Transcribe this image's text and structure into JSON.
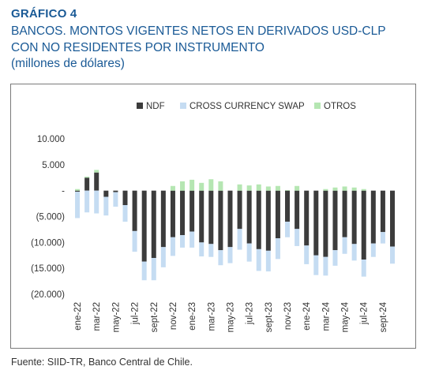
{
  "header": {
    "kicker": "GRÁFICO 4",
    "title_line1": "BANCOS. MONTOS VIGENTES NETOS EN DERIVADOS USD-CLP",
    "title_line2": "CON NO RESIDENTES POR INSTRUMENTO",
    "units": "(millones de dólares)"
  },
  "footer": {
    "source": "Fuente: SIID-TR, Banco Central de Chile."
  },
  "colors": {
    "ndf": "#3c3c3c",
    "ccs": "#c5dcf2",
    "otros": "#b5e6b2",
    "title": "#1a5a96"
  },
  "chart_data": {
    "type": "bar",
    "stacked": true,
    "legend_position": "top",
    "grid": false,
    "ylim": [
      -20000,
      10000
    ],
    "y_ticks": [
      10000,
      5000,
      0,
      -5000,
      -10000,
      -15000,
      -20000
    ],
    "y_tick_labels": [
      "10.000",
      "5.000",
      "-",
      "(5.000)",
      "(10.000)",
      "(15.000)",
      "(20.000)"
    ],
    "categories": [
      "ene-22",
      "feb-22",
      "mar-22",
      "abr-22",
      "may-22",
      "jun-22",
      "jul-22",
      "ago-22",
      "sept-22",
      "oct-22",
      "nov-22",
      "dic-22",
      "ene-23",
      "feb-23",
      "mar-23",
      "abr-23",
      "may-23",
      "jun-23",
      "jul-23",
      "ago-23",
      "sept-23",
      "oct-23",
      "nov-23",
      "dic-23",
      "ene-24",
      "feb-24",
      "mar-24",
      "abr-24",
      "may-24",
      "jun-24",
      "jul-24",
      "ago-24",
      "sept-24",
      "oct-24"
    ],
    "x_tick_labels": [
      "ene-22",
      "mar-22",
      "may-22",
      "jul-22",
      "sept-22",
      "nov-22",
      "ene-23",
      "mar-23",
      "may-23",
      "jul-23",
      "sept-23",
      "nov-23",
      "ene-24",
      "mar-24",
      "may-24",
      "jul-24",
      "sept-24"
    ],
    "series": [
      {
        "name": "NDF",
        "values": [
          -200,
          2500,
          3500,
          -1200,
          -300,
          -2800,
          -7800,
          -13700,
          -13000,
          -10900,
          -9000,
          -8600,
          -7900,
          -10000,
          -10300,
          -11500,
          -10900,
          -7400,
          -10200,
          -11300,
          -11600,
          -9200,
          -6000,
          -7400,
          -10600,
          -12500,
          -12800,
          -11500,
          -9000,
          -10300,
          -13300,
          -10200,
          -8000,
          -10800
        ]
      },
      {
        "name": "CROSS CURRENCY SWAP",
        "values": [
          -5100,
          -4200,
          -4400,
          -3600,
          -2800,
          -3200,
          -4000,
          -3600,
          -4300,
          -3900,
          -3600,
          -2400,
          -3100,
          -2700,
          -2500,
          -2900,
          -3100,
          -4000,
          -3500,
          -4200,
          -4000,
          -4000,
          -3000,
          -3300,
          -3600,
          -3800,
          -3600,
          -3000,
          -3200,
          -3200,
          -3300,
          -2600,
          -2200,
          -3300
        ]
      },
      {
        "name": "OTROS",
        "values": [
          300,
          200,
          500,
          0,
          0,
          0,
          0,
          0,
          0,
          0,
          900,
          1800,
          2100,
          1500,
          2200,
          1800,
          0,
          1200,
          1000,
          1200,
          800,
          900,
          100,
          900,
          0,
          0,
          300,
          600,
          800,
          600,
          300,
          0,
          0,
          0
        ]
      }
    ]
  }
}
